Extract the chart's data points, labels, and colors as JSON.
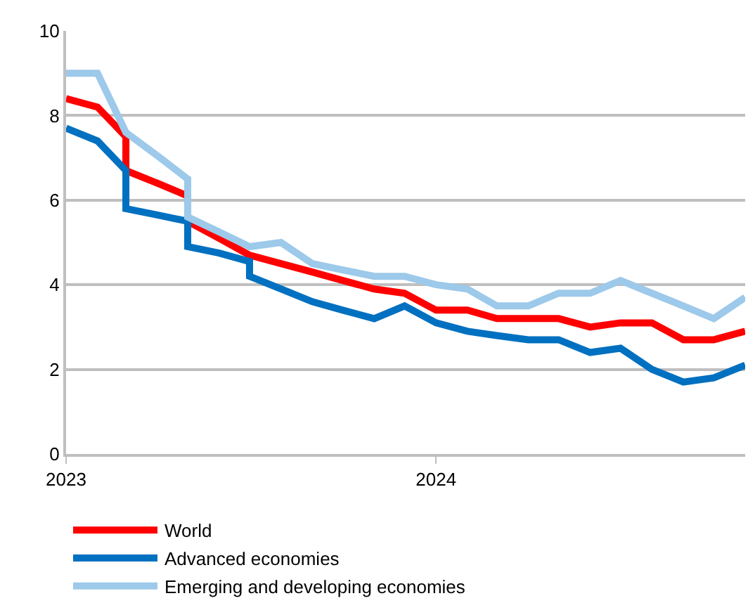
{
  "chart_data": {
    "type": "line",
    "xlim": [
      "2023-01",
      "2024-11"
    ],
    "xticks": [
      "2023",
      "2024"
    ],
    "ylim": [
      0,
      10
    ],
    "yticks": [
      0,
      2,
      4,
      6,
      8,
      10
    ],
    "grid": "y",
    "legend": "bottom left",
    "marker": "none",
    "line_style": "solid",
    "series": [
      {
        "name": "World",
        "color": "#ff0000",
        "x": [
          "2023-01",
          "2023-02",
          "2023-03",
          "2023-03",
          "2023-04",
          "2023-05",
          "2023-05",
          "2023-06",
          "2023-07",
          "2023-08",
          "2023-09",
          "2023-10",
          "2023-11",
          "2023-12",
          "2024-01",
          "2024-02",
          "2024-03",
          "2024-04",
          "2024-05",
          "2024-06",
          "2024-07",
          "2024-08",
          "2024-09",
          "2024-10",
          "2024-11"
        ],
        "values": [
          8.4,
          8.2,
          7.5,
          6.7,
          6.4,
          6.1,
          5.5,
          5.1,
          4.7,
          4.5,
          4.3,
          4.1,
          3.9,
          3.8,
          3.4,
          3.4,
          3.2,
          3.2,
          3.2,
          3.0,
          3.1,
          3.1,
          2.7,
          2.7,
          2.9
        ]
      },
      {
        "name": "Advanced economies",
        "color": "#0070c0",
        "x": [
          "2023-01",
          "2023-02",
          "2023-03",
          "2023-03",
          "2023-04",
          "2023-05",
          "2023-05",
          "2023-06",
          "2023-07",
          "2023-07",
          "2023-08",
          "2023-09",
          "2023-10",
          "2023-11",
          "2023-12",
          "2024-01",
          "2024-02",
          "2024-03",
          "2024-04",
          "2024-05",
          "2024-06",
          "2024-07",
          "2024-08",
          "2024-09",
          "2024-10",
          "2024-11"
        ],
        "values": [
          7.7,
          7.4,
          6.7,
          5.8,
          5.65,
          5.5,
          4.9,
          4.75,
          4.55,
          4.2,
          3.9,
          3.6,
          3.4,
          3.2,
          3.5,
          3.1,
          2.9,
          2.8,
          2.7,
          2.7,
          2.4,
          2.5,
          2.0,
          1.7,
          1.8,
          2.1
        ]
      },
      {
        "name": "Emerging and developing economies",
        "color": "#9dc9ea",
        "x": [
          "2023-01",
          "2023-02",
          "2023-03",
          "2023-04",
          "2023-05",
          "2023-05",
          "2023-06",
          "2023-07",
          "2023-08",
          "2023-09",
          "2023-10",
          "2023-11",
          "2023-12",
          "2024-01",
          "2024-02",
          "2024-03",
          "2024-04",
          "2024-05",
          "2024-06",
          "2024-07",
          "2024-08",
          "2024-09",
          "2024-10",
          "2024-11"
        ],
        "values": [
          9.0,
          9.0,
          7.6,
          7.05,
          6.5,
          5.6,
          5.25,
          4.9,
          5.0,
          4.5,
          4.35,
          4.2,
          4.2,
          4.0,
          3.9,
          3.5,
          3.5,
          3.8,
          3.8,
          4.1,
          3.8,
          3.5,
          3.2,
          3.7
        ]
      }
    ]
  }
}
